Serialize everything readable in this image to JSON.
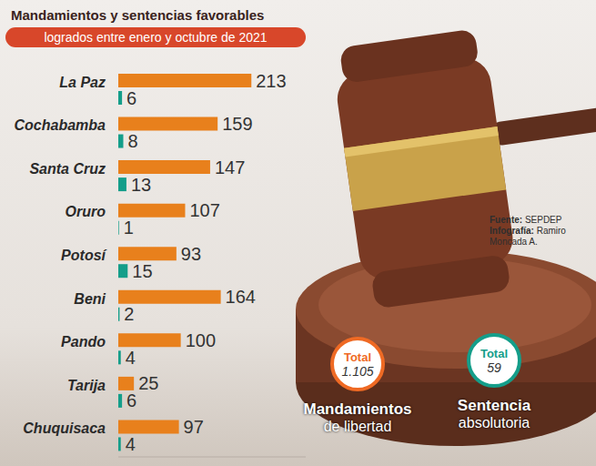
{
  "chart_data": {
    "type": "bar",
    "orientation": "horizontal",
    "title": "Mandamientos y sentencias favorables",
    "subtitle": "logrados entre enero y octubre de 2021",
    "categories": [
      "La Paz",
      "Cochabamba",
      "Santa Cruz",
      "Oruro",
      "Potosí",
      "Beni",
      "Pando",
      "Tarija",
      "Chuquisaca"
    ],
    "series": [
      {
        "name": "Mandamientos de libertad",
        "color": "#e8801c",
        "values": [
          213,
          159,
          147,
          107,
          93,
          164,
          100,
          25,
          97
        ]
      },
      {
        "name": "Sentencia absolutoria",
        "color": "#149e8a",
        "values": [
          6,
          8,
          13,
          1,
          15,
          2,
          4,
          6,
          4
        ]
      }
    ],
    "xlim": [
      0,
      300
    ],
    "xticks": [],
    "data_labels": true,
    "tick_labels": "y",
    "grid": false
  },
  "source": {
    "label": "Fuente:",
    "text": "SEPDEP"
  },
  "credit": {
    "label": "Infografía:",
    "text": "Ramiro Moncada A."
  },
  "totals": [
    {
      "label": "Total",
      "value": 1105,
      "value_label": "1.105",
      "caption": [
        "Mandamientos",
        "de libertad"
      ],
      "color": "#ef6a24"
    },
    {
      "label": "Total",
      "value": 59,
      "caption": [
        "Sentencia",
        "absolutoria"
      ],
      "color": "#149e8a"
    }
  ]
}
